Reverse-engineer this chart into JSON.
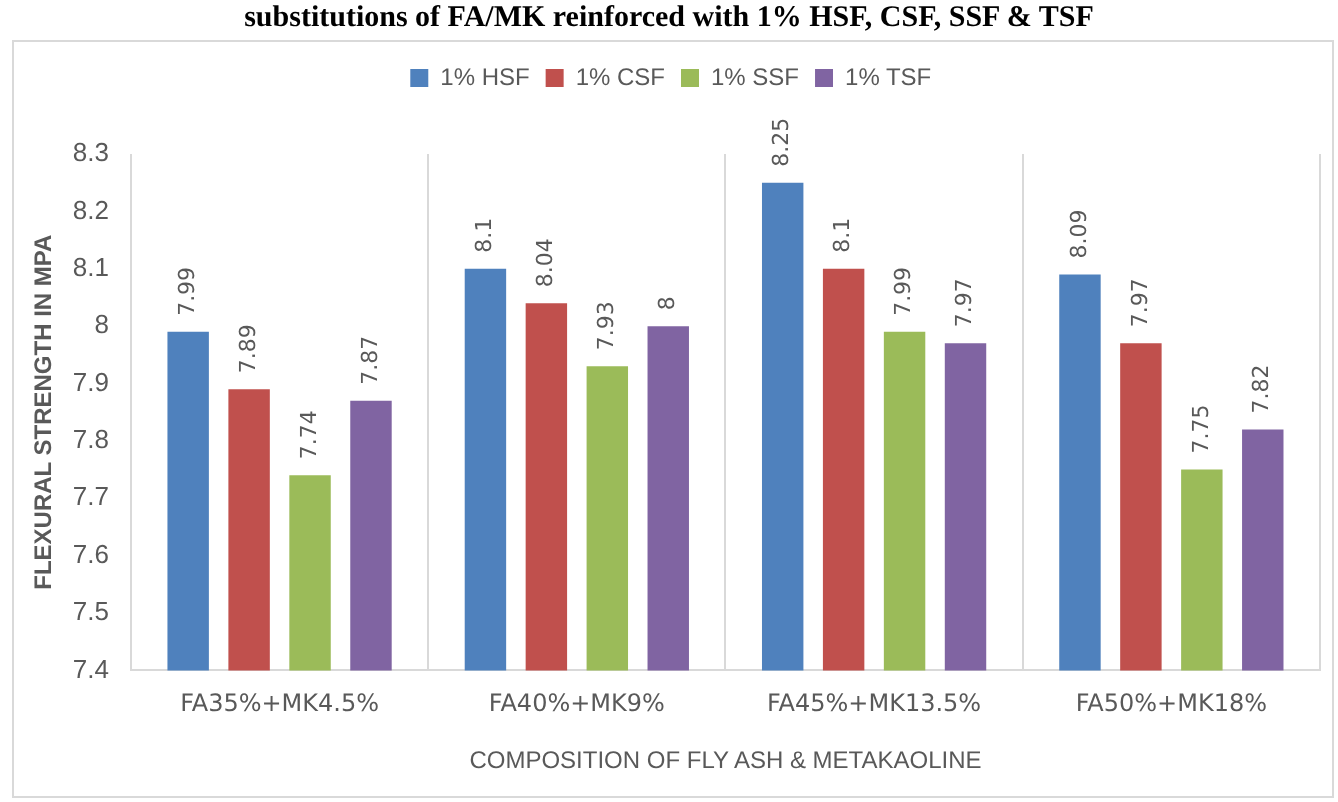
{
  "chart_data": {
    "type": "bar",
    "title": "substitutions of FA/MK reinforced with 1% HSF, CSF, SSF & TSF",
    "xlabel": "COMPOSITION OF FLY ASH & METAKAOLINE",
    "ylabel": "FLEXURAL STRENGTH IN MPA",
    "categories": [
      "FA35%+MK4.5%",
      "FA40%+MK9%",
      "FA45%+MK13.5%",
      "FA50%+MK18%"
    ],
    "series": [
      {
        "name": "1% HSF",
        "color": "#4f81bd",
        "values": [
          7.99,
          8.1,
          8.25,
          8.09
        ]
      },
      {
        "name": "1% CSF",
        "color": "#c0504d",
        "values": [
          7.89,
          8.04,
          8.1,
          7.97
        ]
      },
      {
        "name": "1% SSF",
        "color": "#9bbb59",
        "values": [
          7.74,
          7.93,
          7.99,
          7.75
        ]
      },
      {
        "name": "1% TSF",
        "color": "#8064a2",
        "values": [
          7.87,
          8,
          7.97,
          7.82
        ]
      }
    ],
    "ylim": [
      7.4,
      8.3
    ],
    "yticks": [
      7.4,
      7.5,
      7.6,
      7.7,
      7.8,
      7.9,
      8,
      8.1,
      8.2,
      8.3
    ],
    "grid": "x",
    "legend": "top",
    "data_labels": true
  }
}
